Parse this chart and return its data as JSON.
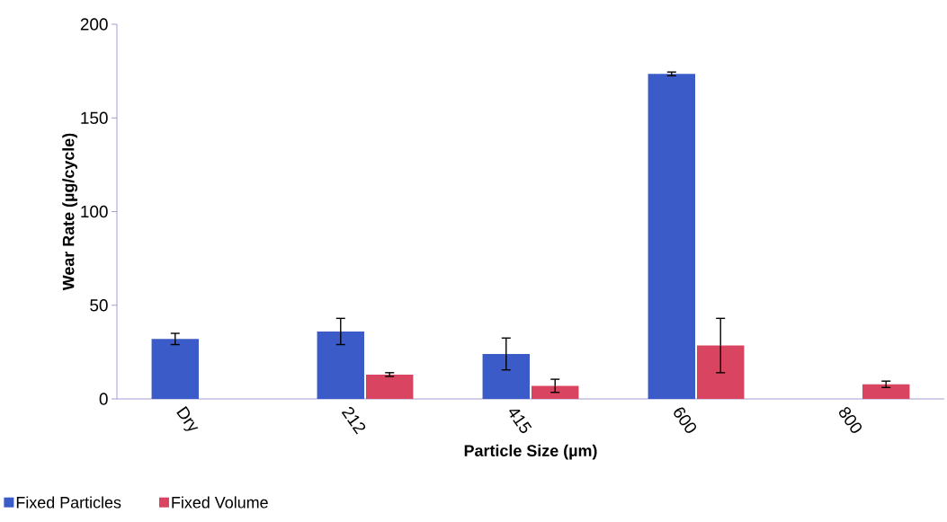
{
  "chart_data": {
    "type": "bar",
    "xlabel": "Particle Size (µm)",
    "ylabel": "Wear Rate (µg/cycle)",
    "categories": [
      "Dry",
      "212",
      "415",
      "600",
      "800"
    ],
    "series": [
      {
        "name": "Fixed Particles",
        "color": "#3a5bc8",
        "values": [
          32,
          36,
          24,
          173.5,
          null
        ],
        "errors": [
          3,
          7,
          8.5,
          1,
          null
        ]
      },
      {
        "name": "Fixed Volume",
        "color": "#d94560",
        "values": [
          null,
          13,
          7,
          28.5,
          7.8
        ],
        "errors": [
          null,
          1,
          3.5,
          14.5,
          1.7
        ]
      }
    ],
    "ylim": [
      0,
      200
    ],
    "yticks": [
      0,
      50,
      100,
      150,
      200
    ],
    "legend": "bottom left"
  }
}
